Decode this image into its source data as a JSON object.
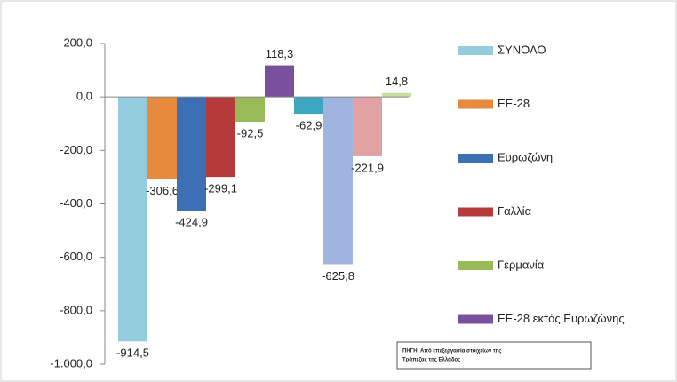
{
  "chart_data": {
    "type": "bar",
    "series": [
      {
        "name": "ΣΥΝΟΛΟ",
        "color": "#93cddd",
        "values": [
          -914.5
        ],
        "value_labels": [
          "-914,5"
        ]
      },
      {
        "name": "ΕΕ-28",
        "color": "#e68a3e",
        "values": [
          -306.6
        ],
        "value_labels": [
          "-306,6"
        ]
      },
      {
        "name": "Ευρωζώνη",
        "color": "#3d6fb4",
        "values": [
          -424.9
        ],
        "value_labels": [
          "-424,9"
        ]
      },
      {
        "name": "Γαλλία",
        "color": "#b53a3a",
        "values": [
          -299.1
        ],
        "value_labels": [
          "-299,1"
        ]
      },
      {
        "name": "Γερμανία",
        "color": "#98bb58",
        "values": [
          -92.5
        ],
        "value_labels": [
          "-92,5"
        ]
      },
      {
        "name": "ΕΕ-28 εκτός Ευρωζώνης",
        "color": "#7a4f9e",
        "values": [
          118.3
        ],
        "value_labels": [
          "118,3"
        ]
      },
      {
        "color": "#3ea6c0",
        "values": [
          -62.9
        ],
        "value_labels": [
          "-62,9"
        ]
      },
      {
        "color": "#9fb4de",
        "values": [
          -625.8
        ],
        "value_labels": [
          "-625,8"
        ]
      },
      {
        "color": "#e3a2a2",
        "values": [
          -221.9
        ],
        "value_labels": [
          "-221,9"
        ]
      },
      {
        "color": "#c9deA3",
        "values": [
          14.8
        ],
        "value_labels": [
          "14,8"
        ]
      }
    ],
    "ylim": [
      -1000,
      200
    ],
    "yticks": [
      {
        "value": -1000,
        "label": "-1.000,0"
      },
      {
        "value": -800,
        "label": "-800,0"
      },
      {
        "value": -600,
        "label": "-600,0"
      },
      {
        "value": -400,
        "label": "-400,0"
      },
      {
        "value": -200,
        "label": "-200,0"
      },
      {
        "value": 0,
        "label": "0,0"
      },
      {
        "value": 200,
        "label": "200,0"
      }
    ],
    "legend_position": "right",
    "annotations": [
      "ΠΗΓΗ: Από επεξεργασία στοιχείων της",
      "Τράπεζας της Ελλάδος"
    ]
  }
}
